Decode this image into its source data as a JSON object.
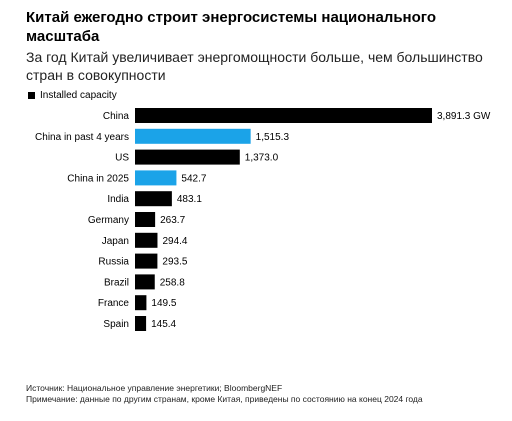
{
  "title": "Китай ежегодно строит энергосистемы национального масштаба",
  "subtitle": "За год Китай увеличивает энергомощности больше, чем большинство стран в совокупности",
  "source": "Источник: Национальное управление энергетики; BloombergNEF",
  "note": "Примечание: данные по другим странам, кроме Китая, приведены по состоянию на конец 2024 года",
  "colors": {
    "black": "#000000",
    "blue": "#1ba3e8"
  },
  "chart_data": {
    "type": "bar",
    "orientation": "horizontal",
    "legend": [
      "Installed capacity"
    ],
    "legend_position": "top-left",
    "grid": false,
    "categories": [
      "China",
      "China in past 4 years",
      "US",
      "China in 2025",
      "India",
      "Germany",
      "Japan",
      "Russia",
      "Brazil",
      "France",
      "Spain"
    ],
    "values": [
      3891.3,
      1515.3,
      1373.0,
      542.7,
      483.1,
      263.7,
      294.4,
      293.5,
      258.8,
      149.5,
      145.4
    ],
    "labels": [
      "3,891.3 GW",
      "1,515.3",
      "1,373.0",
      "542.7",
      "483.1",
      "263.7",
      "294.4",
      "293.5",
      "258.8",
      "149.5",
      "145.4"
    ],
    "highlight": [
      false,
      true,
      false,
      true,
      false,
      false,
      false,
      false,
      false,
      false,
      false
    ],
    "xlim": [
      0,
      3891.3
    ]
  }
}
